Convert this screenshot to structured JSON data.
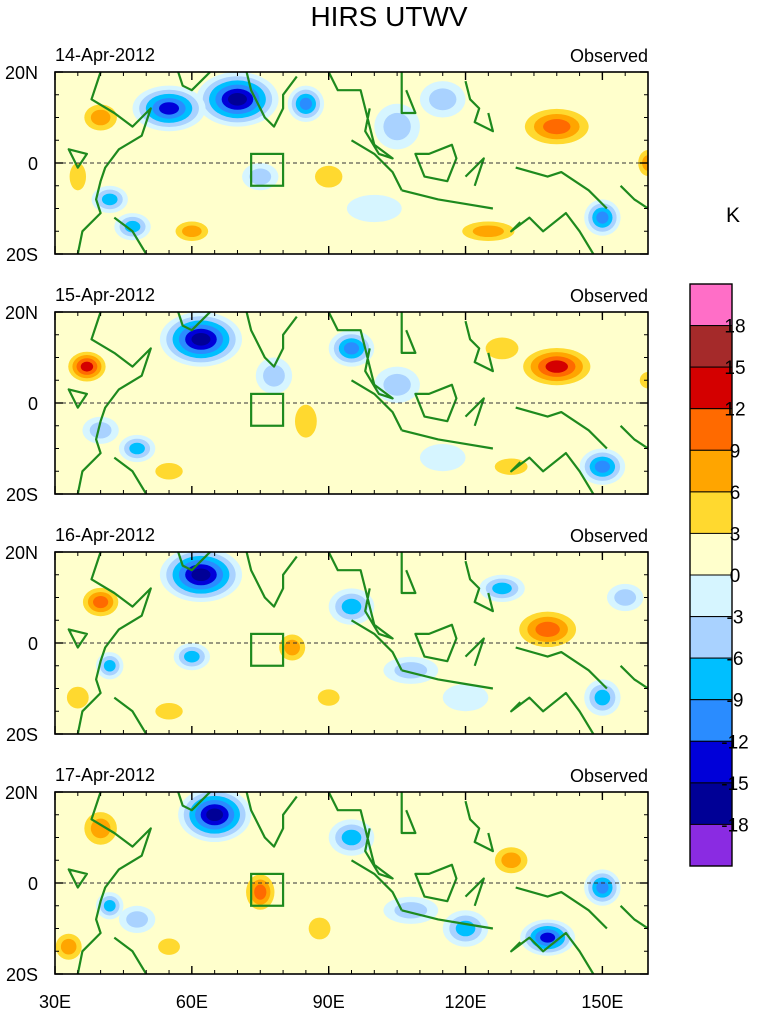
{
  "chart_data": {
    "type": "heatmap",
    "title": "HIRS UTWV",
    "unit": "K",
    "x_axis": {
      "range": [
        30,
        160
      ],
      "ticks": [
        30,
        60,
        90,
        120,
        150
      ],
      "tick_labels": [
        "30E",
        "60E",
        "90E",
        "120E",
        "150E"
      ]
    },
    "y_axis": {
      "range": [
        -20,
        20
      ],
      "ticks": [
        20,
        0,
        -20
      ],
      "tick_labels": [
        "20N",
        "0",
        "20S"
      ]
    },
    "box_region": {
      "lon": [
        73,
        80
      ],
      "lat": [
        -5,
        2
      ]
    },
    "colorbar": {
      "levels": [
        -18,
        -15,
        -12,
        -9,
        -6,
        -3,
        0,
        3,
        6,
        9,
        12,
        15,
        18
      ],
      "labels": [
        "18",
        "15",
        "12",
        "9",
        "6",
        "3",
        "0",
        "-3",
        "-6",
        "-9",
        "-12",
        "-15",
        "-18"
      ],
      "colors_top_to_bottom": [
        "#ff6ec7",
        "#a52a2a",
        "#d40000",
        "#ff6a00",
        "#ffa500",
        "#ffd92f",
        "#ffffcc",
        "#d6f5ff",
        "#a9d2ff",
        "#00bfff",
        "#2a8cff",
        "#0000d9",
        "#000096",
        "#8a2be2"
      ]
    },
    "panels": [
      {
        "date": "14-Apr-2012",
        "tag": "Observed",
        "blobs": [
          [
            70,
            14,
            9,
            6,
            -18
          ],
          [
            55,
            12,
            8,
            5,
            -15
          ],
          [
            40,
            10,
            5,
            4,
            9
          ],
          [
            35,
            -3,
            3,
            5,
            6
          ],
          [
            42,
            -8,
            4,
            3,
            -9
          ],
          [
            60,
            -15,
            5,
            3,
            9
          ],
          [
            85,
            13,
            4,
            4,
            -12
          ],
          [
            90,
            -3,
            5,
            4,
            6
          ],
          [
            75,
            -3,
            4,
            3,
            -6
          ],
          [
            105,
            8,
            5,
            5,
            -6
          ],
          [
            115,
            14,
            5,
            4,
            -6
          ],
          [
            140,
            8,
            9,
            5,
            12
          ],
          [
            160,
            0,
            3,
            4,
            9
          ],
          [
            125,
            -15,
            8,
            3,
            9
          ],
          [
            150,
            -12,
            4,
            4,
            -12
          ],
          [
            100,
            -10,
            6,
            3,
            -3
          ],
          [
            47,
            -14,
            4,
            3,
            -9
          ]
        ]
      },
      {
        "date": "15-Apr-2012",
        "tag": "Observed",
        "blobs": [
          [
            62,
            14,
            9,
            6,
            -18
          ],
          [
            37,
            8,
            5,
            4,
            15
          ],
          [
            40,
            -6,
            4,
            3,
            -6
          ],
          [
            48,
            -10,
            4,
            3,
            -9
          ],
          [
            55,
            -15,
            5,
            3,
            6
          ],
          [
            85,
            -4,
            4,
            6,
            6
          ],
          [
            95,
            12,
            5,
            4,
            -12
          ],
          [
            105,
            4,
            5,
            4,
            -6
          ],
          [
            140,
            8,
            9,
            5,
            15
          ],
          [
            128,
            12,
            6,
            4,
            6
          ],
          [
            150,
            -14,
            5,
            4,
            -12
          ],
          [
            130,
            -14,
            6,
            3,
            6
          ],
          [
            115,
            -12,
            5,
            3,
            -3
          ],
          [
            78,
            6,
            4,
            4,
            -6
          ],
          [
            160,
            5,
            3,
            3,
            6
          ]
        ]
      },
      {
        "date": "16-Apr-2012",
        "tag": "Observed",
        "blobs": [
          [
            62,
            15,
            9,
            6,
            -18
          ],
          [
            40,
            9,
            5,
            4,
            12
          ],
          [
            42,
            -5,
            3,
            3,
            -9
          ],
          [
            35,
            -12,
            4,
            4,
            6
          ],
          [
            55,
            -15,
            5,
            3,
            6
          ],
          [
            60,
            -3,
            4,
            3,
            -9
          ],
          [
            82,
            -1,
            4,
            4,
            9
          ],
          [
            95,
            8,
            5,
            4,
            -9
          ],
          [
            108,
            -6,
            6,
            3,
            -6
          ],
          [
            138,
            3,
            8,
            5,
            12
          ],
          [
            150,
            -12,
            4,
            4,
            -9
          ],
          [
            120,
            -12,
            5,
            3,
            -3
          ],
          [
            128,
            12,
            5,
            3,
            -9
          ],
          [
            90,
            -12,
            4,
            3,
            6
          ],
          [
            155,
            10,
            4,
            3,
            -6
          ]
        ]
      },
      {
        "date": "17-Apr-2012",
        "tag": "Observed",
        "blobs": [
          [
            65,
            15,
            8,
            6,
            -18
          ],
          [
            40,
            12,
            5,
            5,
            9
          ],
          [
            42,
            -5,
            3,
            3,
            -9
          ],
          [
            33,
            -14,
            4,
            4,
            9
          ],
          [
            55,
            -14,
            4,
            3,
            6
          ],
          [
            75,
            -2,
            4,
            5,
            12
          ],
          [
            95,
            10,
            5,
            4,
            -9
          ],
          [
            108,
            -6,
            6,
            3,
            -6
          ],
          [
            120,
            -10,
            5,
            4,
            -9
          ],
          [
            138,
            -12,
            6,
            4,
            -15
          ],
          [
            150,
            -1,
            4,
            4,
            -12
          ],
          [
            130,
            5,
            5,
            4,
            9
          ],
          [
            88,
            -10,
            4,
            4,
            6
          ],
          [
            48,
            -8,
            4,
            3,
            -6
          ]
        ]
      }
    ]
  }
}
